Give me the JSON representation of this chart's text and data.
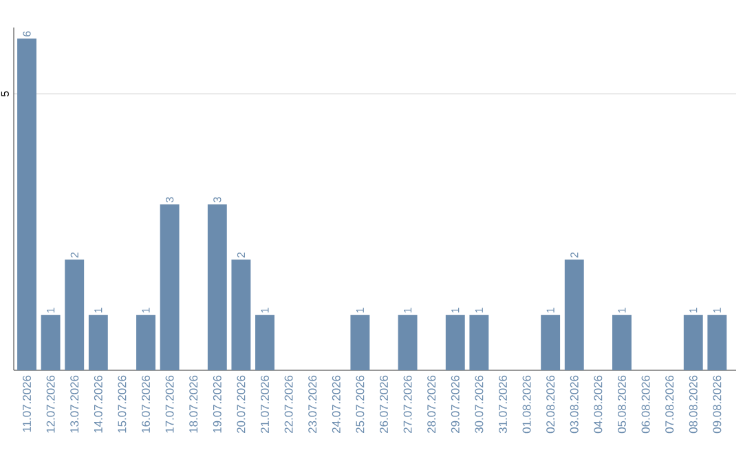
{
  "chart_data": {
    "type": "bar",
    "categories": [
      "11.07.2026",
      "12.07.2026",
      "13.07.2026",
      "14.07.2026",
      "15.07.2026",
      "16.07.2026",
      "17.07.2026",
      "18.07.2026",
      "19.07.2026",
      "20.07.2026",
      "21.07.2026",
      "22.07.2026",
      "23.07.2026",
      "24.07.2026",
      "25.07.2026",
      "26.07.2026",
      "27.07.2026",
      "28.07.2026",
      "29.07.2026",
      "30.07.2026",
      "31.07.2026",
      "01.08.2026",
      "02.08.2026",
      "03.08.2026",
      "04.08.2026",
      "05.08.2026",
      "06.08.2026",
      "07.08.2026",
      "08.08.2026",
      "09.08.2026"
    ],
    "values": [
      6,
      1,
      2,
      1,
      0,
      1,
      3,
      0,
      3,
      2,
      1,
      0,
      0,
      0,
      1,
      0,
      1,
      0,
      1,
      1,
      0,
      0,
      1,
      2,
      0,
      1,
      0,
      0,
      1,
      1
    ],
    "value_labels": [
      "6",
      "1",
      "2",
      "1",
      null,
      "1",
      "3",
      null,
      "3",
      "2",
      "1",
      null,
      null,
      null,
      "1",
      null,
      "1",
      null,
      "1",
      "1",
      null,
      null,
      "1",
      "2",
      null,
      "1",
      null,
      null,
      "1",
      "1"
    ],
    "color": "#6b8cae",
    "ylim": [
      0,
      6.2
    ],
    "yticks": [
      5
    ],
    "grid": "y"
  }
}
